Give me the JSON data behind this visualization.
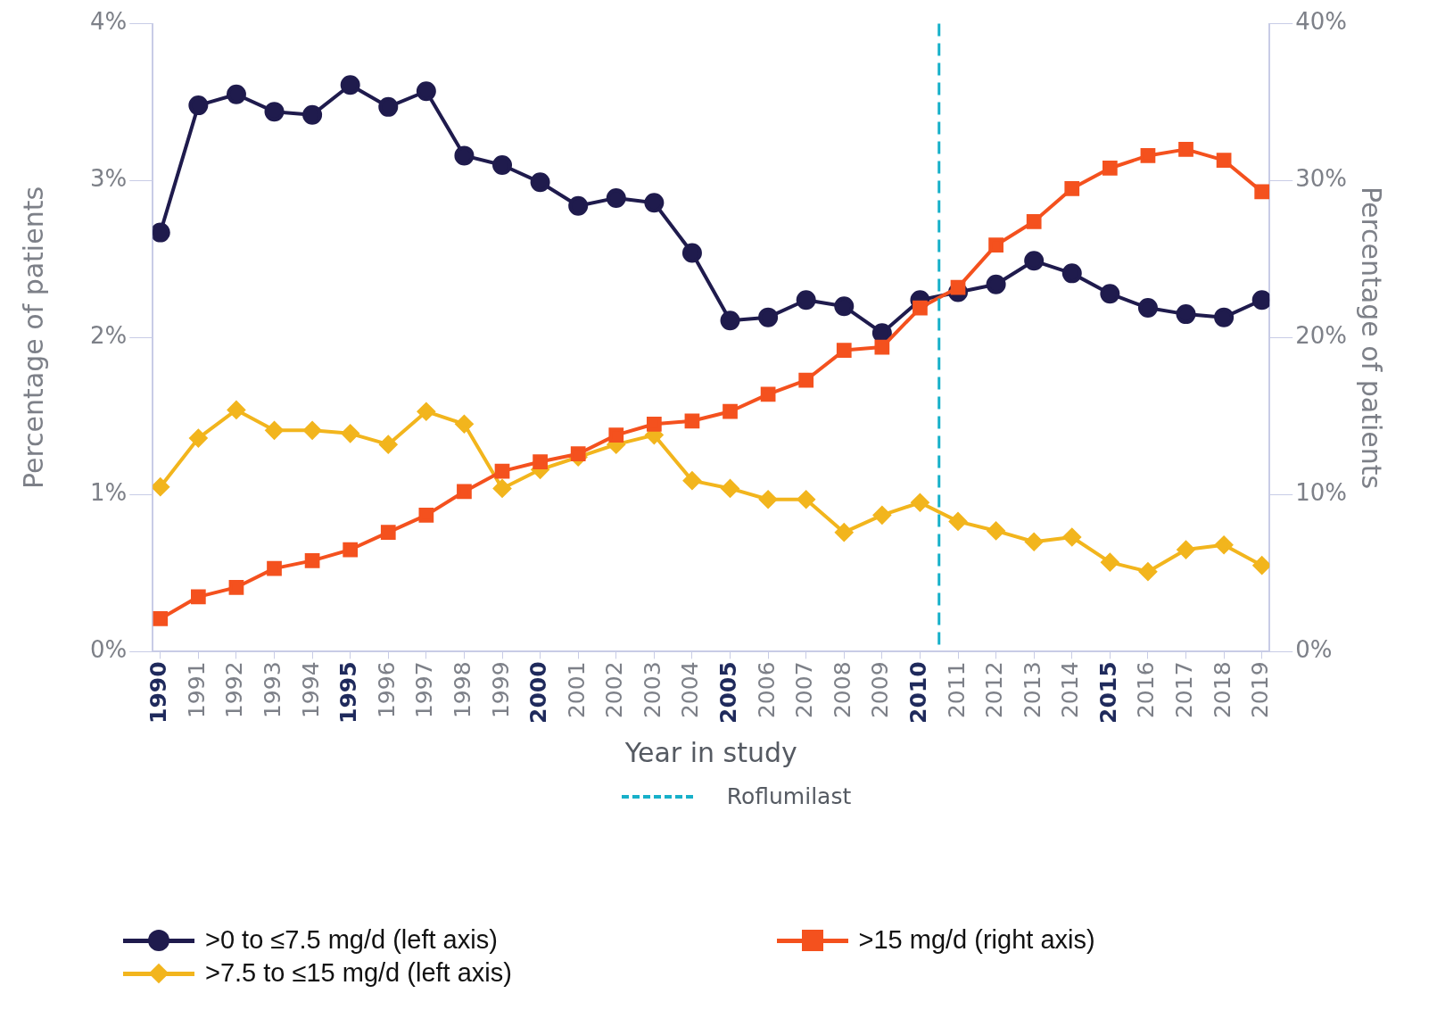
{
  "chart_data": {
    "type": "line",
    "xlabel": "Year in study",
    "ylabel": "Percentage of patients",
    "y2label": "Percentage of patients",
    "x": [
      1990,
      1991,
      1992,
      1993,
      1994,
      1995,
      1996,
      1997,
      1998,
      1999,
      2000,
      2001,
      2002,
      2003,
      2004,
      2005,
      2006,
      2007,
      2008,
      2009,
      2010,
      2011,
      2012,
      2013,
      2014,
      2015,
      2016,
      2017,
      2018,
      2019
    ],
    "xlim": [
      1989.8,
      2019.2
    ],
    "xticks": [
      1990,
      1991,
      1992,
      1993,
      1994,
      1995,
      1996,
      1997,
      1998,
      1999,
      2000,
      2001,
      2002,
      2003,
      2004,
      2005,
      2006,
      2007,
      2008,
      2009,
      2010,
      2011,
      2012,
      2013,
      2014,
      2015,
      2016,
      2017,
      2018,
      2019
    ],
    "ylim": [
      0,
      4
    ],
    "yticks": [
      {
        "value": 0,
        "label": "0%"
      },
      {
        "value": 1,
        "label": "1%"
      },
      {
        "value": 2,
        "label": "2%"
      },
      {
        "value": 3,
        "label": "3%"
      },
      {
        "value": 4,
        "label": "4%"
      }
    ],
    "y2lim": [
      0,
      40
    ],
    "y2ticks": [
      {
        "value": 0,
        "label": "0%"
      },
      {
        "value": 10,
        "label": "10%"
      },
      {
        "value": 20,
        "label": "20%"
      },
      {
        "value": 30,
        "label": "30%"
      },
      {
        "value": 40,
        "label": "40%"
      }
    ],
    "grid": false,
    "legend": "bottom",
    "line_style": "solid",
    "series": [
      {
        "name": ">0 to ≤7.5 mg/d (left axis)",
        "color": "#1f1b4d",
        "marker": "circle",
        "axis": "y",
        "values": [
          2.67,
          3.48,
          3.55,
          3.44,
          3.42,
          3.61,
          3.47,
          3.57,
          3.16,
          3.1,
          2.99,
          2.84,
          2.89,
          2.86,
          2.54,
          2.11,
          2.13,
          2.24,
          2.2,
          2.03,
          2.24,
          2.29,
          2.34,
          2.49,
          2.41,
          2.28,
          2.19,
          2.15,
          2.13,
          2.24
        ]
      },
      {
        "name": ">7.5 to ≤15 mg/d (left axis)",
        "color": "#f2b51d",
        "marker": "diamond",
        "axis": "y",
        "values": [
          1.05,
          1.36,
          1.54,
          1.41,
          1.41,
          1.39,
          1.32,
          1.53,
          1.45,
          1.04,
          1.16,
          1.24,
          1.32,
          1.38,
          1.09,
          1.04,
          0.97,
          0.97,
          0.76,
          0.87,
          0.95,
          0.83,
          0.77,
          0.7,
          0.73,
          0.57,
          0.51,
          0.65,
          0.68,
          0.55
        ]
      },
      {
        "name": ">15 mg/d (right axis)",
        "color": "#f4511e",
        "marker": "square",
        "axis": "y2",
        "values": [
          2.1,
          3.5,
          4.1,
          5.3,
          5.8,
          6.5,
          7.6,
          8.7,
          10.2,
          11.5,
          12.1,
          12.6,
          13.8,
          14.5,
          14.7,
          15.3,
          16.4,
          17.3,
          19.2,
          19.4,
          21.9,
          23.2,
          25.9,
          27.4,
          29.5,
          30.8,
          31.6,
          32.0,
          31.3,
          29.3
        ]
      }
    ],
    "ref_lines": [
      {
        "axis": "x",
        "value": 2010.5,
        "label": "Roflumilast",
        "color": "#17b0c9",
        "line_style": "dashed"
      }
    ]
  }
}
